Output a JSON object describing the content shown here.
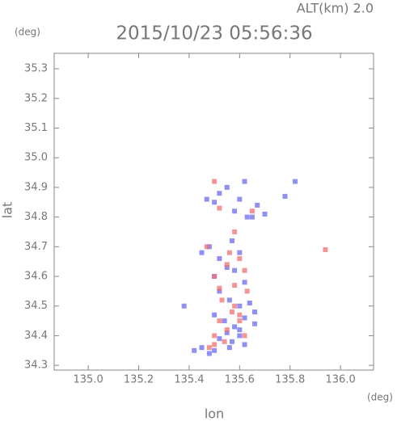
{
  "chart_data": {
    "type": "scatter",
    "title": "2015/10/23 05:56:36",
    "subtitle": "ALT(km) 2.0",
    "x_label": "lon",
    "y_label": "lat",
    "x_unit": "(deg)",
    "y_unit": "(deg)",
    "xlim": [
      134.865,
      136.131
    ],
    "ylim": [
      34.284,
      35.352
    ],
    "xticks": [
      {
        "value": 135,
        "label": "135.0"
      },
      135.2,
      135.4,
      135.6,
      135.8,
      {
        "value": 136,
        "label": "136.0"
      }
    ],
    "yticks": [
      34.3,
      34.4,
      34.5,
      34.6,
      34.7,
      34.8,
      34.9,
      {
        "value": 35,
        "label": "35.0"
      },
      35.1,
      35.2,
      35.3
    ],
    "series": [
      {
        "color": "#6a6af0",
        "x": [
          135.47,
          135.5,
          135.52,
          135.58,
          135.6,
          135.63,
          135.67,
          135.7,
          135.55,
          135.62,
          135.45,
          135.48,
          135.52,
          135.57,
          135.6,
          135.55,
          135.5,
          135.58,
          135.62,
          135.52,
          135.56,
          135.6,
          135.64,
          135.5,
          135.54,
          135.58,
          135.62,
          135.66,
          135.55,
          135.6,
          135.52,
          135.57,
          135.62,
          135.66,
          135.5,
          135.56,
          135.6,
          135.42,
          135.45,
          135.48,
          135.65,
          135.82,
          135.78,
          135.38
        ],
        "values": [
          34.86,
          34.85,
          34.88,
          34.82,
          34.86,
          34.8,
          34.84,
          34.81,
          34.9,
          34.92,
          34.68,
          34.7,
          34.66,
          34.72,
          34.68,
          34.63,
          34.6,
          34.62,
          34.58,
          34.55,
          34.52,
          34.5,
          34.51,
          34.47,
          34.45,
          34.43,
          34.46,
          34.48,
          34.41,
          34.42,
          34.39,
          34.38,
          34.37,
          34.44,
          34.35,
          34.36,
          34.4,
          34.35,
          34.36,
          34.34,
          34.8,
          34.92,
          34.87,
          34.5
        ]
      },
      {
        "color": "#f07070",
        "x": [
          135.5,
          135.52,
          135.58,
          135.6,
          135.55,
          135.5,
          135.58,
          135.62,
          135.53,
          135.57,
          135.6,
          135.52,
          135.55,
          135.58,
          135.62,
          135.5,
          135.54,
          135.6,
          135.52,
          135.56,
          135.63,
          135.5,
          135.48,
          135.94,
          135.65,
          135.47
        ],
        "values": [
          34.92,
          34.83,
          34.75,
          34.66,
          34.64,
          34.6,
          34.57,
          34.62,
          34.52,
          34.48,
          34.45,
          34.45,
          34.42,
          34.5,
          34.4,
          34.4,
          34.38,
          34.47,
          34.56,
          34.68,
          34.55,
          34.37,
          34.36,
          34.69,
          34.82,
          34.7
        ]
      }
    ]
  }
}
